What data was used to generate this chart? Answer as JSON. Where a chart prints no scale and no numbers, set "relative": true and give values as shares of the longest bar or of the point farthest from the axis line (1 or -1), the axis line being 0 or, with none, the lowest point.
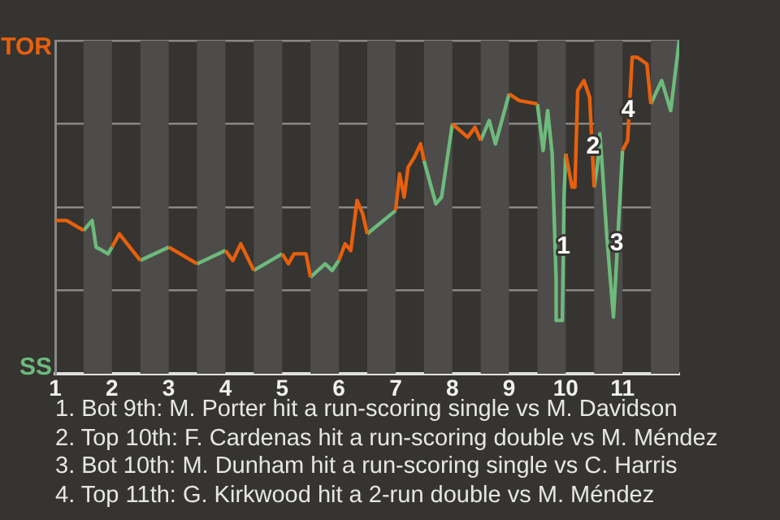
{
  "chart_data": {
    "type": "line",
    "relative": true,
    "marker": "none",
    "grid": "y",
    "legend": "left",
    "xlim": [
      1,
      12
    ],
    "xticks": [
      1,
      2,
      3,
      4,
      5,
      6,
      7,
      8,
      9,
      10,
      11
    ],
    "series": [
      {
        "name": "TOR",
        "color": "#e8600c",
        "x": [
          1,
          1.2,
          1.5,
          2,
          2.13,
          2.5,
          3,
          3.5,
          4,
          4.13,
          4.27,
          4.5,
          5,
          5.11,
          5.21,
          5.42,
          5.5,
          6,
          6.11,
          6.21,
          6.32,
          6.42,
          6.5,
          7,
          7.07,
          7.15,
          7.22,
          7.33,
          7.44,
          7.5,
          8,
          8.27,
          8.4,
          8.5,
          9,
          9.18,
          9.5,
          10,
          10.11,
          10.16,
          10.21,
          10.32,
          10.42,
          10.5,
          11,
          11.09,
          11.17,
          11.26,
          11.43,
          11.5
        ],
        "values": [
          0.46,
          0.46,
          0.43,
          0.38,
          0.42,
          0.34,
          0.38,
          0.33,
          0.37,
          0.34,
          0.39,
          0.31,
          0.36,
          0.33,
          0.36,
          0.36,
          0.29,
          0.34,
          0.39,
          0.37,
          0.52,
          0.48,
          0.42,
          0.49,
          0.6,
          0.53,
          0.62,
          0.65,
          0.69,
          0.64,
          0.75,
          0.71,
          0.74,
          0.7,
          0.84,
          0.82,
          0.81,
          0.66,
          0.56,
          0.56,
          0.85,
          0.88,
          0.83,
          0.56,
          0.67,
          0.7,
          0.95,
          0.95,
          0.93,
          0.81
        ]
      },
      {
        "name": "SS",
        "color": "#6dbb7c",
        "x": [
          1.5,
          1.65,
          1.72,
          1.83,
          1.93,
          2,
          2.5,
          3,
          3.5,
          4,
          4.5,
          5,
          5.5,
          5.76,
          5.88,
          6,
          6.5,
          7,
          7.5,
          7.71,
          7.81,
          8,
          8.5,
          8.65,
          8.76,
          9,
          9.5,
          9.6,
          9.68,
          9.76,
          9.83,
          9.83,
          9.94,
          9.97,
          10,
          10.5,
          10.56,
          10.6,
          10.64,
          10.72,
          10.84,
          10.88,
          11,
          11.5,
          11.69,
          11.85,
          11.92,
          12
        ],
        "values": [
          0.43,
          0.46,
          0.38,
          0.37,
          0.36,
          0.38,
          0.34,
          0.38,
          0.33,
          0.37,
          0.31,
          0.36,
          0.29,
          0.33,
          0.31,
          0.34,
          0.42,
          0.49,
          0.64,
          0.51,
          0.53,
          0.75,
          0.7,
          0.76,
          0.69,
          0.84,
          0.81,
          0.67,
          0.79,
          0.66,
          0.28,
          0.16,
          0.16,
          0.54,
          0.66,
          0.56,
          0.63,
          0.72,
          0.63,
          0.42,
          0.17,
          0.29,
          0.67,
          0.81,
          0.88,
          0.79,
          0.89,
          1
        ]
      }
    ],
    "bands": [
      {
        "axis": "x",
        "from": 1.5,
        "to": 2,
        "color": "#4e4c4a"
      },
      {
        "axis": "x",
        "from": 2.5,
        "to": 3,
        "color": "#4e4c4a"
      },
      {
        "axis": "x",
        "from": 3.5,
        "to": 4,
        "color": "#4e4c4a"
      },
      {
        "axis": "x",
        "from": 4.5,
        "to": 5,
        "color": "#4e4c4a"
      },
      {
        "axis": "x",
        "from": 5.5,
        "to": 6,
        "color": "#4e4c4a"
      },
      {
        "axis": "x",
        "from": 6.5,
        "to": 7,
        "color": "#4e4c4a"
      },
      {
        "axis": "x",
        "from": 7.5,
        "to": 8,
        "color": "#4e4c4a"
      },
      {
        "axis": "x",
        "from": 8.5,
        "to": 9,
        "color": "#4e4c4a"
      },
      {
        "axis": "x",
        "from": 9.5,
        "to": 10,
        "color": "#4e4c4a"
      },
      {
        "axis": "x",
        "from": 10.5,
        "to": 11,
        "color": "#4e4c4a"
      },
      {
        "axis": "x",
        "from": 11.5,
        "to": 12,
        "color": "#4e4c4a"
      }
    ],
    "annotations": [
      {
        "text": "1",
        "x": 9.96,
        "y": 0.38
      },
      {
        "text": "2",
        "x": 10.48,
        "y": 0.68
      },
      {
        "text": "3",
        "x": 10.9,
        "y": 0.39
      },
      {
        "text": "4",
        "x": 11.1,
        "y": 0.79
      },
      "1. Bot 9th: M. Porter hit a run-scoring single vs M. Davidson",
      "2. Top 10th: F. Cardenas hit a run-scoring double vs M. Méndez",
      "3. Bot 10th: M. Dunham hit a run-scoring single vs C. Harris",
      "4. Top 11th: G. Kirkwood hit a 2-run double vs M. Méndez"
    ]
  }
}
